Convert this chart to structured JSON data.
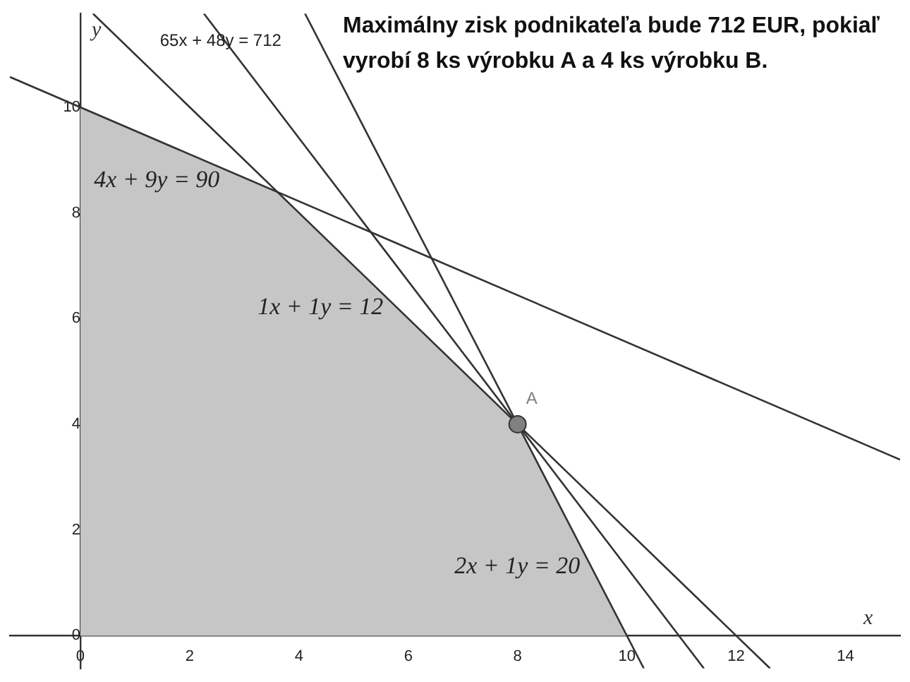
{
  "chart_data": {
    "type": "line",
    "title": "Maximálny zisk podnikateľa bude 712 EUR, pokiaľ vyrobí 8 ks výrobku A a 4 ks výrobku B.",
    "xlabel": "x",
    "ylabel": "y",
    "xlim": [
      -1.29,
      15
    ],
    "ylim": [
      -0.62,
      11.77
    ],
    "xticks": [
      0,
      2,
      4,
      6,
      8,
      10,
      12,
      14
    ],
    "yticks": [
      0,
      2,
      4,
      6,
      8,
      10
    ],
    "grid": false,
    "legend": false,
    "series": [
      {
        "type": "area",
        "color": "#c6c6c6",
        "x": [
          0,
          0,
          3.6,
          8,
          10
        ],
        "values": [
          0,
          10,
          8.4,
          4,
          0
        ]
      },
      {
        "name": "4x + 9y = 90",
        "color": "#333333",
        "x": [
          -1.29,
          15
        ],
        "values": [
          10.57,
          3.33
        ]
      },
      {
        "name": "1x + 1y = 12",
        "color": "#333333",
        "x": [
          0.23,
          12.62
        ],
        "values": [
          11.77,
          -0.62
        ]
      },
      {
        "name": "65x + 48y = 712",
        "color": "#333333",
        "x": [
          2.26,
          11.41
        ],
        "values": [
          11.77,
          -0.62
        ]
      },
      {
        "name": "2x + 1y = 20",
        "color": "#333333",
        "x": [
          4.11,
          10.31
        ],
        "values": [
          11.77,
          -0.62
        ]
      },
      {
        "name": "A",
        "type": "scatter",
        "color": "#808080",
        "marker": "circle",
        "x": [
          8
        ],
        "values": [
          4
        ]
      }
    ]
  }
}
